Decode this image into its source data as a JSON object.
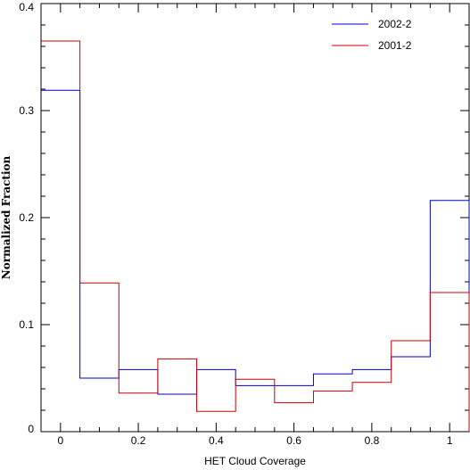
{
  "chart_data": {
    "type": "line",
    "step": true,
    "xlabel": "HET Cloud Coverage",
    "ylabel": "Normalized Fraction",
    "xlim": [
      -0.05,
      1.05
    ],
    "ylim": [
      0,
      0.4
    ],
    "x_ticks": [
      0,
      0.2,
      0.4,
      0.6,
      0.8,
      1
    ],
    "x_tick_labels": [
      "0",
      "0.2",
      "0.4",
      "0.6",
      "0.8",
      "1"
    ],
    "y_ticks": [
      0,
      0.1,
      0.2,
      0.3,
      0.4
    ],
    "y_tick_labels": [
      "0",
      "0.1",
      "0.2",
      "0.3",
      "0.4"
    ],
    "bin_edges": [
      -0.05,
      0.05,
      0.15,
      0.25,
      0.35,
      0.45,
      0.55,
      0.65,
      0.75,
      0.85,
      0.95,
      1.05
    ],
    "series": [
      {
        "name": "2002-2",
        "color": "#0000cc",
        "values": [
          0.319,
          0.05,
          0.058,
          0.035,
          0.058,
          0.043,
          0.043,
          0.054,
          0.058,
          0.07,
          0.216
        ]
      },
      {
        "name": "2001-2",
        "color": "#cc0000",
        "values": [
          0.365,
          0.139,
          0.036,
          0.068,
          0.019,
          0.049,
          0.027,
          0.038,
          0.046,
          0.085,
          0.13
        ]
      }
    ],
    "legend_position": "top-right",
    "grid": false
  }
}
